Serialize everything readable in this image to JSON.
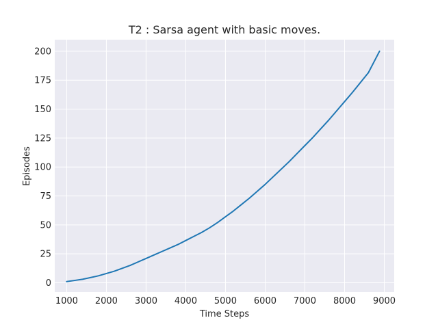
{
  "chart_data": {
    "type": "line",
    "title": "T2 : Sarsa agent with basic moves.",
    "xlabel": "Time Steps",
    "ylabel": "Episodes",
    "xlim": [
      700,
      9250
    ],
    "ylim": [
      -8,
      210
    ],
    "xticks": [
      1000,
      2000,
      3000,
      4000,
      5000,
      6000,
      7000,
      8000,
      9000
    ],
    "yticks": [
      0,
      25,
      50,
      75,
      100,
      125,
      150,
      175,
      200
    ],
    "grid": true,
    "background_color": "#eaeaf2",
    "grid_color": "#ffffff",
    "series": [
      {
        "color": "#1f77b4",
        "x": [
          1000,
          1200,
          1400,
          1600,
          1800,
          2000,
          2200,
          2400,
          2600,
          2800,
          3000,
          3200,
          3400,
          3600,
          3800,
          4000,
          4200,
          4400,
          4600,
          4800,
          5000,
          5200,
          5400,
          5600,
          5800,
          6000,
          6200,
          6400,
          6600,
          6800,
          7000,
          7200,
          7400,
          7600,
          7800,
          8000,
          8200,
          8400,
          8600,
          8880
        ],
        "y": [
          1,
          2,
          3,
          4.5,
          6,
          8,
          10,
          12.5,
          15,
          18,
          21,
          24,
          27,
          30,
          33,
          36.5,
          40,
          43.5,
          47.5,
          52,
          57,
          62,
          67.5,
          73,
          79,
          85,
          91.5,
          98,
          104.5,
          111.5,
          118.5,
          125.5,
          133,
          140.5,
          148.5,
          156.5,
          164.5,
          173,
          181.5,
          200
        ]
      }
    ]
  }
}
